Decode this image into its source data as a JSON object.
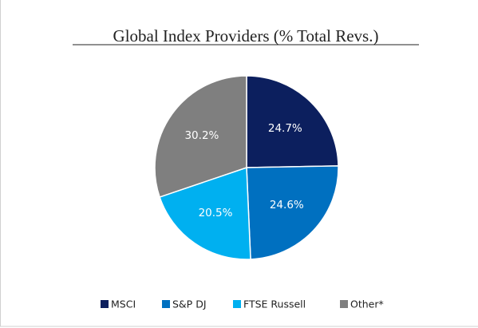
{
  "chart_data": {
    "type": "pie",
    "title": "Global Index Providers (% Total Revs.)",
    "categories": [
      "MSCI",
      "S&P DJ",
      "FTSE Russell",
      "Other*"
    ],
    "values": [
      24.7,
      24.6,
      20.5,
      30.2
    ],
    "value_labels": [
      "24.7%",
      "24.6%",
      "20.5%",
      "30.2%"
    ],
    "colors": [
      "#0c1f5e",
      "#0070c0",
      "#00b0f0",
      "#7f7f7f"
    ]
  }
}
